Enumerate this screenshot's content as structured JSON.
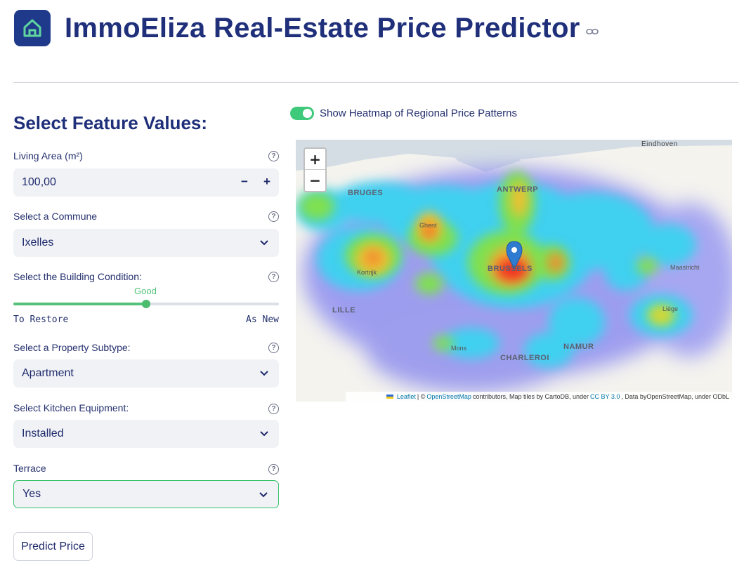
{
  "header": {
    "title": "ImmoEliza Real-Estate Price Predictor",
    "logo_icon": "house-icon",
    "link_icon": "link-icon"
  },
  "form": {
    "section_title": "Select Feature Values:",
    "living_area": {
      "label": "Living Area (m²)",
      "value": "100,00",
      "minus": "−",
      "plus": "+"
    },
    "commune": {
      "label": "Select a Commune",
      "value": "Ixelles"
    },
    "condition": {
      "label": "Select the Building Condition:",
      "value": "Good",
      "min_label": "To Restore",
      "max_label": "As New",
      "fraction": 0.5
    },
    "subtype": {
      "label": "Select a Property Subtype:",
      "value": "Apartment"
    },
    "kitchen": {
      "label": "Select Kitchen Equipment:",
      "value": "Installed"
    },
    "terrace": {
      "label": "Terrace",
      "value": "Yes"
    },
    "help_glyph": "?",
    "predict_label": "Predict Price"
  },
  "map_panel": {
    "toggle_label": "Show Heatmap of Regional Price Patterns",
    "toggle_on": true,
    "zoom_in": "+",
    "zoom_out": "−",
    "cities": {
      "eindhoven": "Eindhoven",
      "bruges": "BRUGES",
      "antwerp": "ANTWERP",
      "ghent": "Ghent",
      "kortrijk": "Kortrijk",
      "brussels": "BRUSSELS",
      "maastricht": "Maastricht",
      "lille": "LILLE",
      "liege": "Liège",
      "mons": "Mons",
      "namur": "NAMUR",
      "charleroi": "CHARLEROI"
    },
    "attribution": {
      "leaflet": "Leaflet",
      "sep": " | © ",
      "osm": "OpenStreetMap",
      "rest1": " contributors, Map tiles by CartoDB, under ",
      "cc": "CC BY 3.0",
      "rest2": ", Data by ",
      "osm2": "OpenStreetMap",
      "rest3": ", under ODbL"
    }
  },
  "colors": {
    "accent": "#1f2f7a",
    "green": "#3fc97a"
  }
}
